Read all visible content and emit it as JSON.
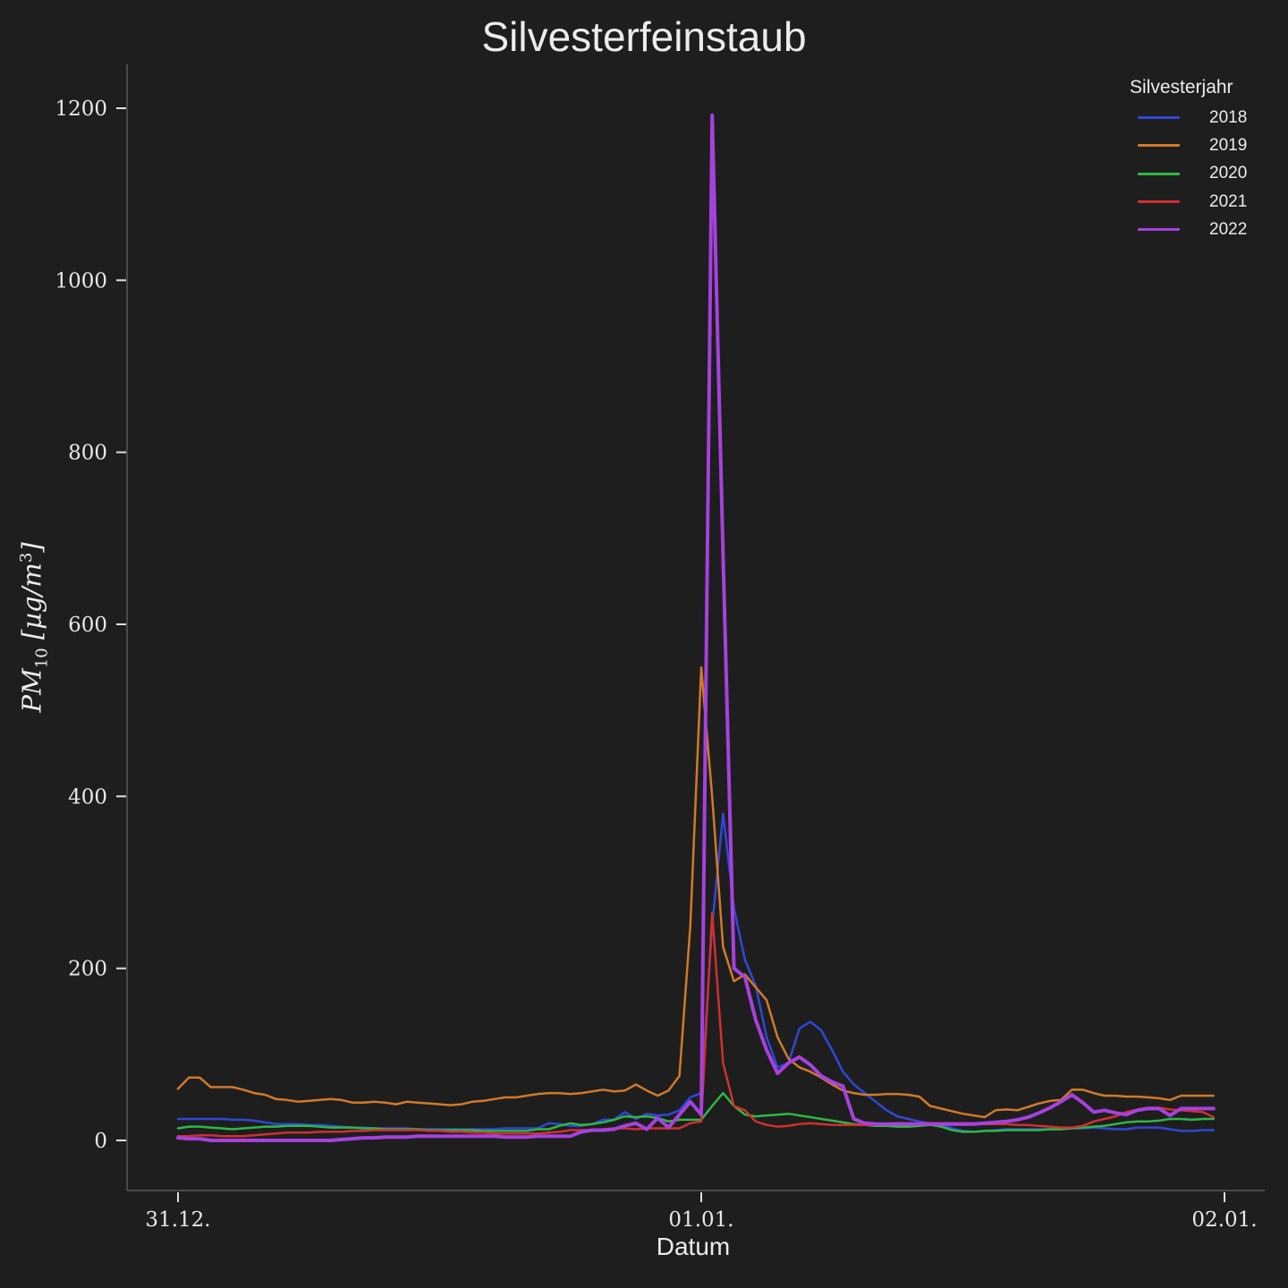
{
  "chart_data": {
    "type": "line",
    "title": "Silvesterfeinstaub",
    "xlabel": "Datum",
    "ylabel": "PM10 [µg/m³]",
    "x_ticks": [
      "31.12.",
      "01.01.",
      "02.01."
    ],
    "y_ticks": [
      0,
      200,
      400,
      600,
      800,
      1000,
      1200
    ],
    "ylim": [
      -58,
      1252
    ],
    "x_interval_minutes": 30,
    "x_start": "31.12. 00:00",
    "x_end": "01.01. 23:30",
    "grid": false,
    "legend_title": "Silvesterjahr",
    "legend_position": "upper right",
    "series": [
      {
        "name": "2018",
        "color": "#2f48d8",
        "width": 2.5,
        "values": [
          25,
          25,
          25,
          25,
          25,
          24,
          24,
          23,
          21,
          19,
          19,
          19,
          18,
          18,
          17,
          16,
          15,
          15,
          14,
          14,
          14,
          14,
          13,
          13,
          13,
          13,
          13,
          13,
          13,
          13,
          14,
          14,
          14,
          14,
          20,
          19,
          17,
          17,
          19,
          24,
          24,
          33,
          25,
          31,
          29,
          30,
          35,
          50,
          55,
          250,
          380,
          270,
          210,
          180,
          120,
          85,
          90,
          130,
          138,
          128,
          105,
          80,
          65,
          55,
          45,
          35,
          28,
          25,
          22,
          20,
          18,
          14,
          11,
          10,
          11,
          12,
          13,
          13,
          13,
          13,
          13,
          13,
          14,
          14,
          15,
          14,
          13,
          13,
          15,
          15,
          15,
          13,
          11,
          11,
          12,
          12
        ]
      },
      {
        "name": "2019",
        "color": "#d07a2a",
        "width": 2.5,
        "values": [
          60,
          73,
          73,
          62,
          62,
          62,
          59,
          55,
          53,
          48,
          47,
          45,
          46,
          47,
          48,
          47,
          44,
          44,
          45,
          44,
          42,
          45,
          44,
          43,
          42,
          41,
          42,
          45,
          46,
          48,
          50,
          50,
          52,
          54,
          55,
          55,
          54,
          55,
          57,
          59,
          57,
          58,
          65,
          58,
          52,
          58,
          75,
          250,
          550,
          400,
          225,
          185,
          193,
          178,
          163,
          120,
          95,
          85,
          80,
          73,
          65,
          58,
          55,
          53,
          53,
          54,
          54,
          53,
          51,
          40,
          37,
          34,
          31,
          29,
          27,
          35,
          36,
          35,
          39,
          43,
          46,
          47,
          59,
          59,
          55,
          52,
          52,
          51,
          51,
          50,
          49,
          47,
          52,
          52,
          52,
          52
        ]
      },
      {
        "name": "2020",
        "color": "#2fb845",
        "width": 2.5,
        "values": [
          14,
          16,
          16,
          15,
          14,
          13,
          14,
          15,
          16,
          16,
          17,
          17,
          17,
          16,
          15,
          15,
          15,
          14,
          14,
          13,
          13,
          13,
          13,
          12,
          12,
          12,
          12,
          12,
          11,
          11,
          11,
          11,
          11,
          13,
          13,
          17,
          20,
          18,
          19,
          21,
          24,
          28,
          27,
          28,
          26,
          22,
          24,
          24,
          24,
          40,
          55,
          40,
          30,
          28,
          29,
          30,
          31,
          29,
          27,
          25,
          23,
          21,
          19,
          18,
          17,
          17,
          16,
          16,
          17,
          18,
          16,
          12,
          10,
          10,
          11,
          11,
          12,
          12,
          12,
          12,
          13,
          13,
          14,
          15,
          16,
          17,
          19,
          21,
          22,
          22,
          23,
          25,
          25,
          24,
          25,
          25
        ]
      },
      {
        "name": "2021",
        "color": "#d03030",
        "width": 2.5,
        "values": [
          5,
          5,
          6,
          6,
          5,
          5,
          5,
          6,
          7,
          8,
          9,
          9,
          9,
          10,
          10,
          10,
          11,
          11,
          12,
          12,
          12,
          12,
          12,
          11,
          11,
          10,
          10,
          9,
          9,
          8,
          8,
          8,
          8,
          8,
          9,
          10,
          12,
          12,
          12,
          13,
          14,
          14,
          13,
          14,
          14,
          14,
          14,
          20,
          22,
          265,
          90,
          40,
          35,
          22,
          18,
          16,
          17,
          19,
          20,
          19,
          18,
          18,
          18,
          18,
          18,
          19,
          20,
          20,
          20,
          20,
          20,
          20,
          20,
          20,
          19,
          19,
          19,
          18,
          18,
          17,
          16,
          15,
          15,
          17,
          22,
          25,
          28,
          33,
          36,
          38,
          38,
          36,
          35,
          34,
          33,
          27
        ]
      },
      {
        "name": "2022",
        "color": "#a542dc",
        "width": 4,
        "values": [
          3,
          2,
          2,
          0,
          0,
          0,
          0,
          0,
          0,
          0,
          0,
          0,
          0,
          0,
          0,
          1,
          2,
          3,
          3,
          4,
          4,
          4,
          5,
          5,
          5,
          5,
          5,
          5,
          5,
          5,
          4,
          4,
          4,
          5,
          5,
          5,
          5,
          10,
          12,
          12,
          13,
          17,
          20,
          13,
          26,
          15,
          30,
          45,
          30,
          1192,
          680,
          200,
          190,
          140,
          105,
          78,
          90,
          97,
          88,
          75,
          68,
          63,
          25,
          20,
          19,
          19,
          19,
          19,
          19,
          19,
          19,
          19,
          19,
          19,
          20,
          21,
          22,
          24,
          27,
          32,
          38,
          45,
          53,
          44,
          33,
          35,
          32,
          30,
          35,
          37,
          37,
          29,
          37,
          37,
          37,
          37
        ]
      }
    ]
  },
  "legend": {
    "title": "Silvesterjahr",
    "items": [
      {
        "label": "2018",
        "color": "#2f48d8"
      },
      {
        "label": "2019",
        "color": "#d07a2a"
      },
      {
        "label": "2020",
        "color": "#2fb845"
      },
      {
        "label": "2021",
        "color": "#d03030"
      },
      {
        "label": "2022",
        "color": "#a542dc"
      }
    ]
  },
  "axes": {
    "title": "Silvesterfeinstaub",
    "xlabel": "Datum",
    "ylabel_main": "PM",
    "ylabel_sub": "10",
    "ylabel_unit": "[µg/m",
    "ylabel_sup": "3",
    "ylabel_close": "]"
  },
  "colors": {
    "background": "#1e1e1e",
    "axis": "#4a4a4a",
    "text": "#ececec"
  }
}
